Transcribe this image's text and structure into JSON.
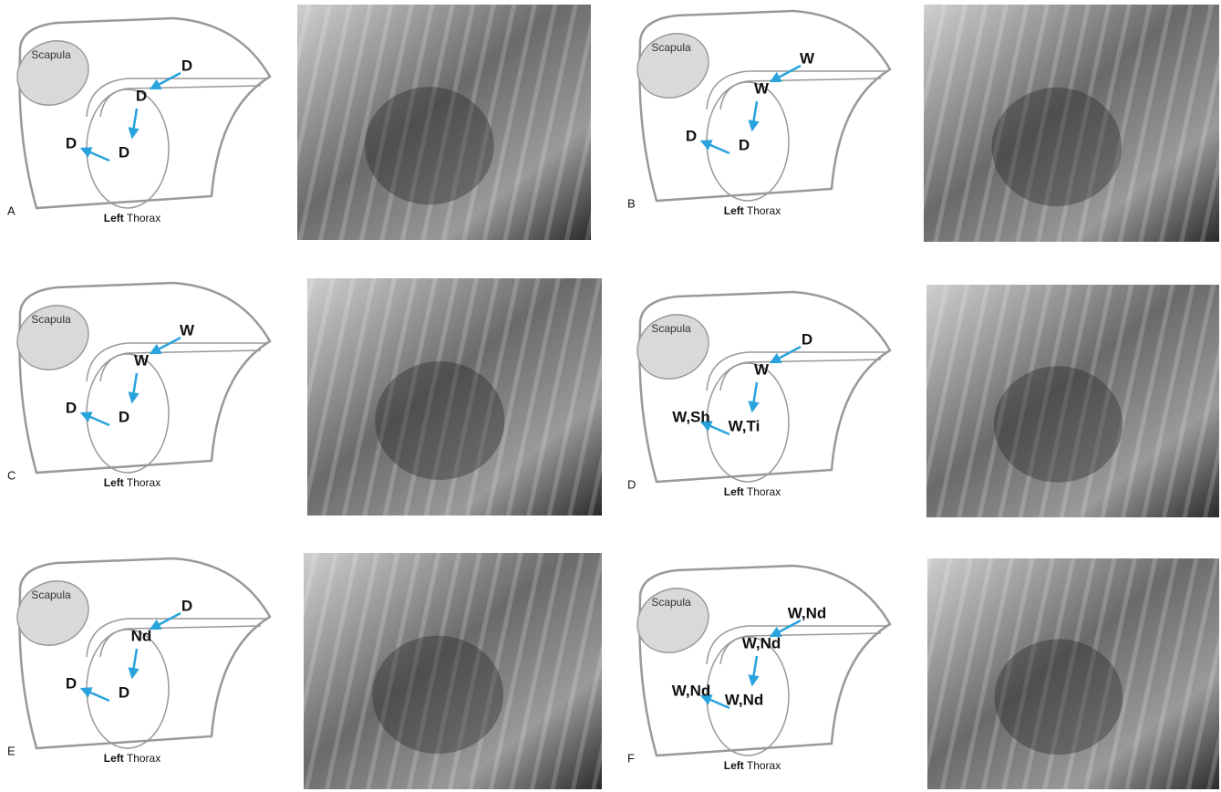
{
  "panels": [
    {
      "letter": "A",
      "scapula": "Scapula",
      "labels": [
        "D",
        "D",
        "D",
        "D"
      ],
      "caption_bold": "Left",
      "caption": "Thorax"
    },
    {
      "letter": "B",
      "scapula": "Scapula",
      "labels": [
        "W",
        "W",
        "D",
        "D"
      ],
      "caption_bold": "Left",
      "caption": "Thorax"
    },
    {
      "letter": "C",
      "scapula": "Scapula",
      "labels": [
        "W",
        "W",
        "D",
        "D"
      ],
      "caption_bold": "Left",
      "caption": "Thorax"
    },
    {
      "letter": "D",
      "scapula": "Scapula",
      "labels": [
        "D",
        "W",
        "W,Ti",
        "W,Sh"
      ],
      "caption_bold": "Left",
      "caption": "Thorax"
    },
    {
      "letter": "E",
      "scapula": "Scapula",
      "labels": [
        "D",
        "Nd",
        "D",
        "D"
      ],
      "caption_bold": "Left",
      "caption": "Thorax"
    },
    {
      "letter": "F",
      "scapula": "Scapula",
      "labels": [
        "W,Nd",
        "W,Nd",
        "W,Nd",
        "W,Nd"
      ],
      "caption_bold": "Left",
      "caption": "Thorax"
    }
  ]
}
